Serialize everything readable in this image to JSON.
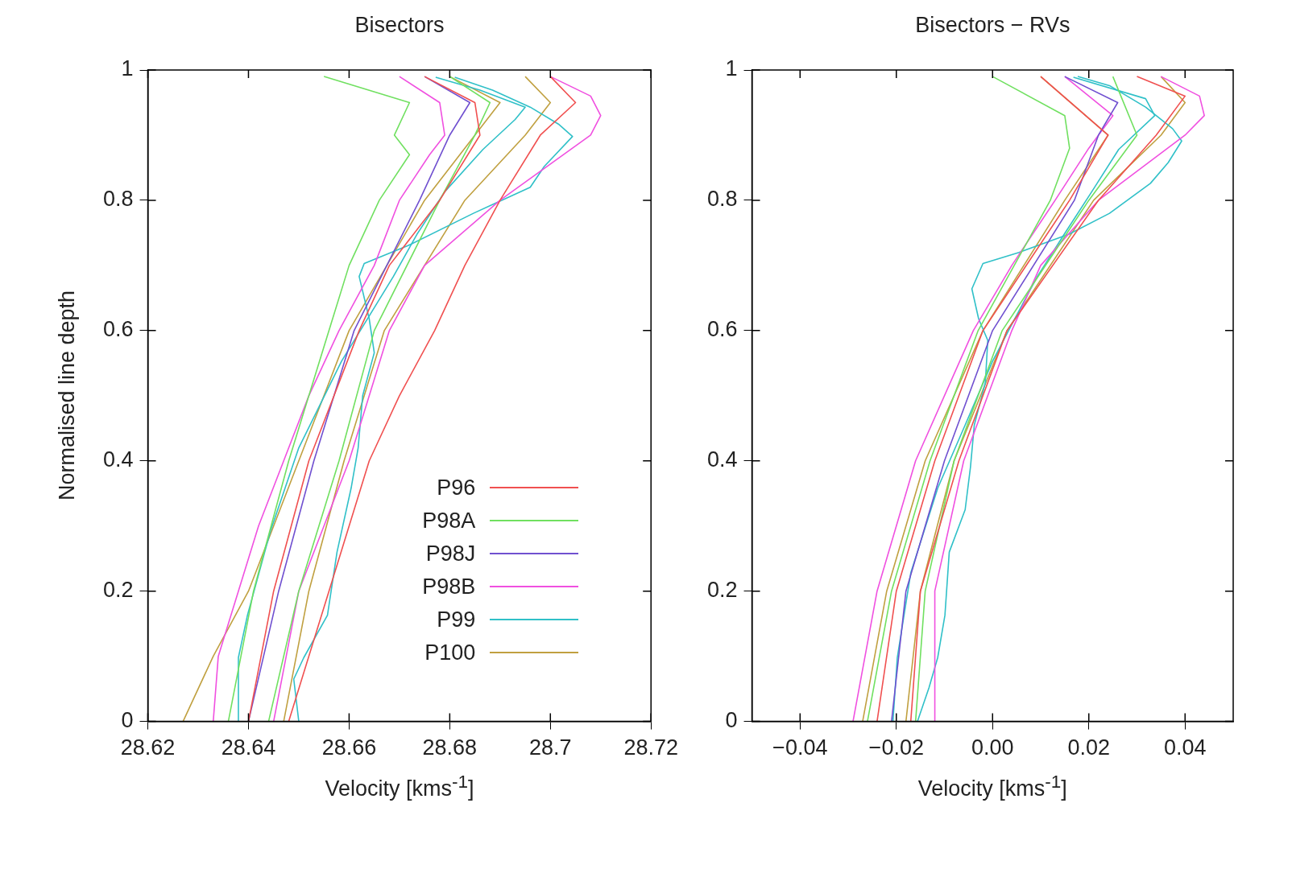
{
  "chart_data": [
    {
      "type": "line",
      "title": "Bisectors",
      "xlabel": "Velocity [kms$^{-1}$]",
      "ylabel": "Normalised line depth",
      "legend": "bottom right",
      "xlim": [
        28.62,
        28.72
      ],
      "ylim": [
        0,
        1
      ],
      "xticks": [
        28.62,
        28.64,
        28.66,
        28.68,
        28.7,
        28.72
      ],
      "yticks": [
        0,
        0.2,
        0.4,
        0.6,
        0.8,
        1
      ],
      "series": [
        {
          "name": "P96",
          "color": "#f05050",
          "x": [
            28.64,
            28.645,
            28.652,
            28.662,
            28.668,
            28.678,
            28.686,
            28.685,
            28.675
          ],
          "values": [
            0,
            0.2,
            0.4,
            0.6,
            0.7,
            0.8,
            0.9,
            0.95,
            0.99
          ]
        },
        {
          "color": "#f05050",
          "x": [
            28.648,
            28.656,
            28.664,
            28.67,
            28.677,
            28.683,
            28.69,
            28.698,
            28.705,
            28.7
          ],
          "values": [
            0,
            0.2,
            0.4,
            0.5,
            0.6,
            0.7,
            0.8,
            0.9,
            0.95,
            0.99
          ]
        },
        {
          "name": "P98A",
          "color": "#70e060",
          "x": [
            28.636,
            28.641,
            28.648,
            28.656,
            28.66,
            28.666,
            28.672,
            28.669,
            28.672,
            28.655
          ],
          "values": [
            0,
            0.2,
            0.4,
            0.6,
            0.7,
            0.8,
            0.87,
            0.9,
            0.95,
            0.99
          ]
        },
        {
          "color": "#70e060",
          "x": [
            28.644,
            28.65,
            28.658,
            28.665,
            28.678,
            28.685,
            28.688,
            28.68
          ],
          "values": [
            0,
            0.2,
            0.4,
            0.6,
            0.8,
            0.9,
            0.95,
            0.99
          ]
        },
        {
          "name": "P98J",
          "color": "#7050d0",
          "x": [
            28.64,
            28.646,
            28.653,
            28.661,
            28.674,
            28.68,
            28.684,
            28.675
          ],
          "values": [
            0,
            0.2,
            0.4,
            0.6,
            0.8,
            0.9,
            0.95,
            0.99
          ]
        },
        {
          "name": "P98B",
          "color": "#f050e0",
          "x": [
            28.633,
            28.634,
            28.638,
            28.642,
            28.647,
            28.652,
            28.658,
            28.665,
            28.67,
            28.676,
            28.679,
            28.678,
            28.67
          ],
          "values": [
            0,
            0.1,
            0.2,
            0.3,
            0.4,
            0.5,
            0.6,
            0.7,
            0.8,
            0.87,
            0.9,
            0.95,
            0.99
          ]
        },
        {
          "color": "#f050e0",
          "x": [
            28.645,
            28.65,
            28.66,
            28.668,
            28.675,
            28.69,
            28.708,
            28.71,
            28.708,
            28.7
          ],
          "values": [
            0,
            0.2,
            0.4,
            0.6,
            0.7,
            0.8,
            0.9,
            0.93,
            0.96,
            0.99
          ]
        },
        {
          "name": "P99",
          "color": "#30c0c8",
          "x": [
            28.65,
            28.649,
            28.651,
            28.6557,
            28.6576,
            28.6604,
            28.6618,
            28.6627,
            28.665,
            28.664,
            28.662,
            28.663,
            28.6716,
            28.6847,
            28.696,
            28.6988,
            28.7044,
            28.7016,
            28.696,
            28.6885,
            28.681
          ],
          "values": [
            0,
            0.065,
            0.098,
            0.163,
            0.26,
            0.358,
            0.42,
            0.5,
            0.566,
            0.618,
            0.683,
            0.703,
            0.73,
            0.78,
            0.82,
            0.852,
            0.898,
            0.917,
            0.943,
            0.969,
            0.989
          ]
        },
        {
          "color": "#30c0c8",
          "x": [
            28.638,
            28.638,
            28.6398,
            28.6444,
            28.65,
            28.6585,
            28.6688,
            28.6735,
            28.679,
            28.6866,
            28.693,
            28.695,
            28.686,
            28.6772
          ],
          "values": [
            0,
            0.098,
            0.163,
            0.293,
            0.42,
            0.553,
            0.683,
            0.748,
            0.813,
            0.878,
            0.924,
            0.943,
            0.969,
            0.989
          ]
        },
        {
          "name": "P100",
          "color": "#c0a040",
          "x": [
            28.627,
            28.633,
            28.64,
            28.65,
            28.66,
            28.675,
            28.685,
            28.69,
            28.68
          ],
          "values": [
            0,
            0.1,
            0.2,
            0.4,
            0.6,
            0.8,
            0.9,
            0.95,
            0.99
          ]
        },
        {
          "color": "#c0a040",
          "x": [
            28.647,
            28.652,
            28.659,
            28.667,
            28.683,
            28.695,
            28.7,
            28.695
          ],
          "values": [
            0,
            0.2,
            0.4,
            0.6,
            0.8,
            0.9,
            0.95,
            0.99
          ]
        }
      ]
    },
    {
      "type": "line",
      "title": "Bisectors − RVs",
      "xlabel": "Velocity [kms$^{-1}$]",
      "xlim": [
        -0.05,
        0.05
      ],
      "ylim": [
        0,
        1
      ],
      "xticks": [
        {
          "value": -0.04,
          "label": "−0.04"
        },
        {
          "value": -0.02,
          "label": "−0.02"
        },
        {
          "value": 0,
          "label": "0.00"
        },
        0.02,
        0.04
      ],
      "yticks": [
        0,
        0.2,
        0.4,
        0.6,
        0.8,
        1
      ],
      "series": [
        {
          "color": "#f05050",
          "x": [
            -0.024,
            -0.02,
            -0.012,
            -0.002,
            0.016,
            0.024,
            0.01
          ],
          "values": [
            0,
            0.2,
            0.4,
            0.6,
            0.8,
            0.9,
            0.99
          ]
        },
        {
          "color": "#f05050",
          "x": [
            -0.017,
            -0.015,
            -0.007,
            0.003,
            0.022,
            0.034,
            0.04,
            0.03
          ],
          "values": [
            0,
            0.2,
            0.4,
            0.6,
            0.8,
            0.9,
            0.96,
            0.99
          ]
        },
        {
          "color": "#70e060",
          "x": [
            -0.026,
            -0.021,
            -0.013,
            -0.003,
            0.012,
            0.016,
            0.015,
            0
          ],
          "values": [
            0,
            0.2,
            0.4,
            0.6,
            0.8,
            0.88,
            0.93,
            0.99
          ]
        },
        {
          "color": "#70e060",
          "x": [
            -0.016,
            -0.014,
            -0.008,
            0.002,
            0.02,
            0.03,
            0.025
          ],
          "values": [
            0,
            0.2,
            0.4,
            0.6,
            0.8,
            0.9,
            0.99
          ]
        },
        {
          "color": "#7050d0",
          "x": [
            -0.021,
            -0.018,
            -0.01,
            0,
            0.017,
            0.022,
            0.026,
            0.015
          ],
          "values": [
            0,
            0.2,
            0.4,
            0.6,
            0.8,
            0.9,
            0.95,
            0.99
          ]
        },
        {
          "color": "#f050e0",
          "x": [
            -0.029,
            -0.024,
            -0.016,
            -0.004,
            0.004,
            0.013,
            0.02,
            0.025,
            0.015
          ],
          "values": [
            0,
            0.2,
            0.4,
            0.6,
            0.7,
            0.8,
            0.88,
            0.93,
            0.99
          ]
        },
        {
          "color": "#f050e0",
          "x": [
            -0.012,
            -0.012,
            -0.006,
            0.004,
            0.01,
            0.022,
            0.04,
            0.044,
            0.043,
            0.035
          ],
          "values": [
            0,
            0.2,
            0.4,
            0.6,
            0.7,
            0.8,
            0.9,
            0.93,
            0.96,
            0.99
          ]
        },
        {
          "color": "#30c0c8",
          "x": [
            -0.0156,
            -0.0132,
            -0.0114,
            -0.0099,
            -0.009,
            -0.0057,
            -0.0046,
            -0.0038,
            -0.0015,
            -0.001,
            -0.0029,
            -0.0043,
            -0.002,
            0.0055,
            0.0159,
            0.0243,
            0.0328,
            0.0365,
            0.0393,
            0.0374,
            0.0318,
            0.0243,
            0.0177
          ],
          "values": [
            0,
            0.052,
            0.098,
            0.163,
            0.26,
            0.325,
            0.39,
            0.455,
            0.52,
            0.585,
            0.618,
            0.664,
            0.703,
            0.72,
            0.748,
            0.78,
            0.826,
            0.858,
            0.891,
            0.91,
            0.943,
            0.976,
            0.99
          ]
        },
        {
          "color": "#30c0c8",
          "x": [
            -0.0207,
            -0.0198,
            -0.017,
            -0.0114,
            -0.0057,
            0,
            0.0046,
            0.0093,
            0.0149,
            0.0206,
            0.0262,
            0.0337,
            0.0318,
            0.0168
          ],
          "values": [
            0,
            0.098,
            0.228,
            0.358,
            0.455,
            0.553,
            0.618,
            0.683,
            0.748,
            0.813,
            0.878,
            0.93,
            0.956,
            0.989
          ]
        },
        {
          "color": "#c0a040",
          "x": [
            -0.027,
            -0.022,
            -0.014,
            -0.002,
            0.015,
            0.024,
            0.01
          ],
          "values": [
            0,
            0.2,
            0.4,
            0.6,
            0.8,
            0.9,
            0.99
          ]
        },
        {
          "color": "#c0a040",
          "x": [
            -0.018,
            -0.015,
            -0.008,
            0.003,
            0.021,
            0.035,
            0.04,
            0.035
          ],
          "values": [
            0,
            0.2,
            0.4,
            0.6,
            0.8,
            0.9,
            0.95,
            0.99
          ]
        }
      ]
    }
  ]
}
